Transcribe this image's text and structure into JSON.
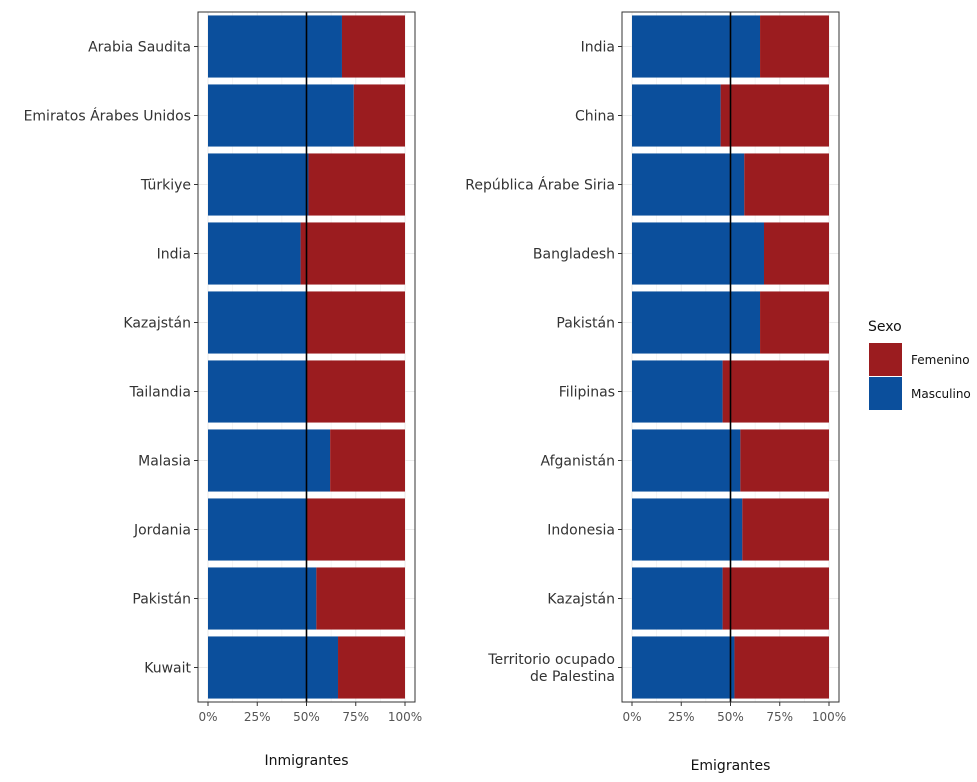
{
  "colors": {
    "female": "#9b1c1f",
    "male": "#0b4f9c",
    "grid": "#ebebeb",
    "panel_border": "#333333",
    "reference_line": "#000000"
  },
  "legend": {
    "title": "Sexo",
    "items": [
      {
        "label": "Femenino",
        "color": "#9b1c1f"
      },
      {
        "label": "Masculino",
        "color": "#0b4f9c"
      }
    ]
  },
  "chart_data": [
    {
      "type": "bar",
      "orientation": "horizontal",
      "stacked": "100%",
      "xlabel": "Inmigrantes",
      "x_ticks": [
        "0%",
        "25%",
        "50%",
        "75%",
        "100%"
      ],
      "xlim": [
        0,
        100
      ],
      "reference_line": 50,
      "categories": [
        "Arabia Saudita",
        "Emiratos Árabes Unidos",
        "Türkiye",
        "India",
        "Kazajstán",
        "Tailandia",
        "Malasia",
        "Jordania",
        "Pakistán",
        "Kuwait"
      ],
      "series": [
        {
          "name": "Masculino",
          "values": [
            68,
            74,
            51,
            47,
            50,
            50,
            62,
            50,
            55,
            66
          ]
        },
        {
          "name": "Femenino",
          "values": [
            32,
            26,
            49,
            53,
            50,
            50,
            38,
            50,
            45,
            34
          ]
        }
      ]
    },
    {
      "type": "bar",
      "orientation": "horizontal",
      "stacked": "100%",
      "xlabel": "Emigrantes",
      "x_ticks": [
        "0%",
        "25%",
        "50%",
        "75%",
        "100%"
      ],
      "xlim": [
        0,
        100
      ],
      "reference_line": 50,
      "categories": [
        "India",
        "China",
        "República Árabe Siria",
        "Bangladesh",
        "Pakistán",
        "Filipinas",
        "Afganistán",
        "Indonesia",
        "Kazajstán",
        "Territorio ocupado\nde Palestina"
      ],
      "series": [
        {
          "name": "Masculino",
          "values": [
            65,
            45,
            57,
            67,
            65,
            46,
            55,
            56,
            46,
            52
          ]
        },
        {
          "name": "Femenino",
          "values": [
            35,
            55,
            43,
            33,
            35,
            54,
            45,
            44,
            54,
            48
          ]
        }
      ]
    }
  ]
}
